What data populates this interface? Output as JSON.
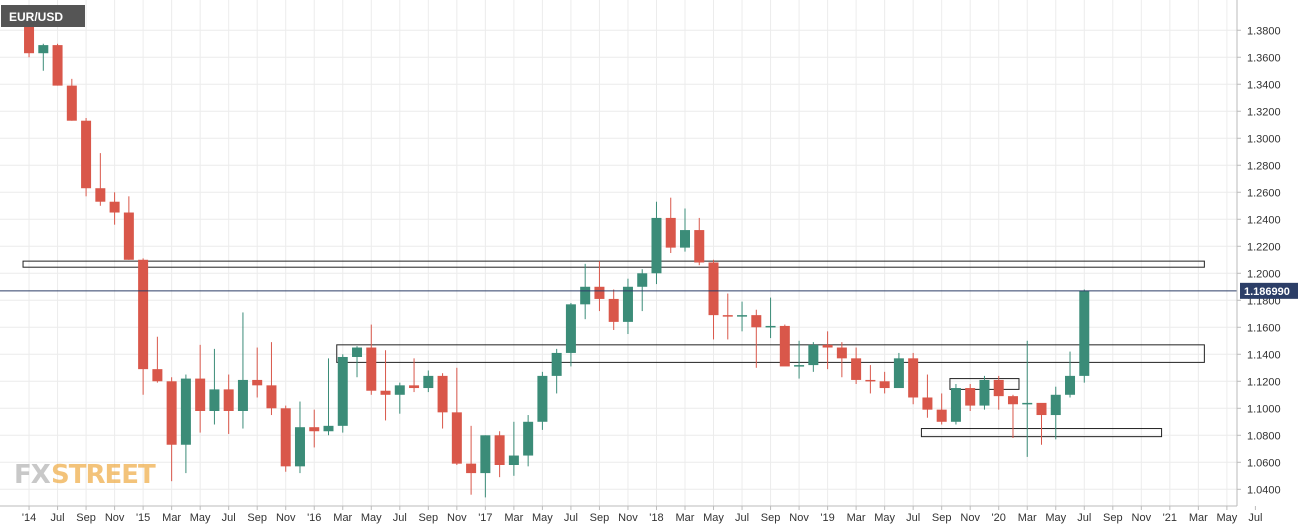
{
  "symbol": "EUR/USD",
  "watermark": {
    "part1": "FX",
    "part2": "STREET"
  },
  "current_price_label": "1.186990",
  "colors": {
    "up": "#3b8c78",
    "down": "#d9574a",
    "grid": "#ececec",
    "axis": "#bbbbbb",
    "price_line": "#2c3e67",
    "badge_bg": "#555555",
    "zone_stroke": "#222222"
  },
  "chart_data": {
    "type": "candlestick",
    "title": "EUR/USD",
    "timeframe": "weekly",
    "ylim": [
      1.03,
      1.395
    ],
    "y_ticks": [
      "1.3800",
      "1.3600",
      "1.3400",
      "1.3200",
      "1.3000",
      "1.2800",
      "1.2600",
      "1.2400",
      "1.2200",
      "1.2000",
      "1.1800",
      "1.1600",
      "1.1400",
      "1.1200",
      "1.1000",
      "1.0800",
      "1.0600",
      "1.0400"
    ],
    "x_ticks": [
      {
        "label": "'14",
        "date": "2014-05"
      },
      {
        "label": "Jul",
        "date": "2014-07"
      },
      {
        "label": "Sep",
        "date": "2014-09"
      },
      {
        "label": "Nov",
        "date": "2014-11"
      },
      {
        "label": "'15",
        "date": "2015-01"
      },
      {
        "label": "Mar",
        "date": "2015-03"
      },
      {
        "label": "May",
        "date": "2015-05"
      },
      {
        "label": "Jul",
        "date": "2015-07"
      },
      {
        "label": "Sep",
        "date": "2015-09"
      },
      {
        "label": "Nov",
        "date": "2015-11"
      },
      {
        "label": "'16",
        "date": "2016-01"
      },
      {
        "label": "Mar",
        "date": "2016-03"
      },
      {
        "label": "May",
        "date": "2016-05"
      },
      {
        "label": "Jul",
        "date": "2016-07"
      },
      {
        "label": "Sep",
        "date": "2016-09"
      },
      {
        "label": "Nov",
        "date": "2016-11"
      },
      {
        "label": "'17",
        "date": "2017-01"
      },
      {
        "label": "Mar",
        "date": "2017-03"
      },
      {
        "label": "May",
        "date": "2017-05"
      },
      {
        "label": "Jul",
        "date": "2017-07"
      },
      {
        "label": "Sep",
        "date": "2017-09"
      },
      {
        "label": "Nov",
        "date": "2017-11"
      },
      {
        "label": "'18",
        "date": "2018-01"
      },
      {
        "label": "Mar",
        "date": "2018-03"
      },
      {
        "label": "May",
        "date": "2018-05"
      },
      {
        "label": "Jul",
        "date": "2018-07"
      },
      {
        "label": "Sep",
        "date": "2018-09"
      },
      {
        "label": "Nov",
        "date": "2018-11"
      },
      {
        "label": "'19",
        "date": "2019-01"
      },
      {
        "label": "Mar",
        "date": "2019-03"
      },
      {
        "label": "May",
        "date": "2019-05"
      },
      {
        "label": "Jul",
        "date": "2019-07"
      },
      {
        "label": "Sep",
        "date": "2019-09"
      },
      {
        "label": "Nov",
        "date": "2019-11"
      },
      {
        "label": "'20",
        "date": "2020-01"
      },
      {
        "label": "Mar",
        "date": "2020-03"
      },
      {
        "label": "May",
        "date": "2020-05"
      },
      {
        "label": "Jul",
        "date": "2020-07"
      },
      {
        "label": "Sep",
        "date": "2020-09"
      },
      {
        "label": "Nov",
        "date": "2020-11"
      },
      {
        "label": "'21",
        "date": "2021-01"
      },
      {
        "label": "Mar",
        "date": "2021-03"
      },
      {
        "label": "May",
        "date": "2021-05"
      },
      {
        "label": "Jul",
        "date": "2021-07"
      }
    ],
    "candles": [
      {
        "date": "2014-05",
        "open": 1.387,
        "high": 1.393,
        "low": 1.36,
        "close": 1.363
      },
      {
        "date": "2014-06",
        "open": 1.363,
        "high": 1.37,
        "low": 1.35,
        "close": 1.369
      },
      {
        "date": "2014-07",
        "open": 1.369,
        "high": 1.37,
        "low": 1.339,
        "close": 1.339
      },
      {
        "date": "2014-08",
        "open": 1.339,
        "high": 1.344,
        "low": 1.313,
        "close": 1.313
      },
      {
        "date": "2014-09",
        "open": 1.313,
        "high": 1.315,
        "low": 1.257,
        "close": 1.263
      },
      {
        "date": "2014-10",
        "open": 1.263,
        "high": 1.289,
        "low": 1.25,
        "close": 1.253
      },
      {
        "date": "2014-11",
        "open": 1.253,
        "high": 1.26,
        "low": 1.236,
        "close": 1.245
      },
      {
        "date": "2014-12",
        "open": 1.245,
        "high": 1.257,
        "low": 1.21,
        "close": 1.21
      },
      {
        "date": "2015-01",
        "open": 1.21,
        "high": 1.211,
        "low": 1.11,
        "close": 1.129
      },
      {
        "date": "2015-02",
        "open": 1.129,
        "high": 1.153,
        "low": 1.119,
        "close": 1.12
      },
      {
        "date": "2015-03",
        "open": 1.12,
        "high": 1.123,
        "low": 1.046,
        "close": 1.073
      },
      {
        "date": "2015-04",
        "open": 1.073,
        "high": 1.125,
        "low": 1.052,
        "close": 1.122
      },
      {
        "date": "2015-05",
        "open": 1.122,
        "high": 1.147,
        "low": 1.082,
        "close": 1.098
      },
      {
        "date": "2015-06",
        "open": 1.098,
        "high": 1.144,
        "low": 1.088,
        "close": 1.114
      },
      {
        "date": "2015-07",
        "open": 1.114,
        "high": 1.125,
        "low": 1.081,
        "close": 1.098
      },
      {
        "date": "2015-08",
        "open": 1.098,
        "high": 1.171,
        "low": 1.085,
        "close": 1.121
      },
      {
        "date": "2015-09",
        "open": 1.121,
        "high": 1.145,
        "low": 1.108,
        "close": 1.117
      },
      {
        "date": "2015-10",
        "open": 1.117,
        "high": 1.149,
        "low": 1.095,
        "close": 1.1
      },
      {
        "date": "2015-11",
        "open": 1.1,
        "high": 1.102,
        "low": 1.053,
        "close": 1.057
      },
      {
        "date": "2015-12",
        "open": 1.057,
        "high": 1.105,
        "low": 1.052,
        "close": 1.086
      },
      {
        "date": "2016-01",
        "open": 1.086,
        "high": 1.099,
        "low": 1.071,
        "close": 1.083
      },
      {
        "date": "2016-02",
        "open": 1.083,
        "high": 1.137,
        "low": 1.08,
        "close": 1.087
      },
      {
        "date": "2016-03",
        "open": 1.087,
        "high": 1.14,
        "low": 1.082,
        "close": 1.138
      },
      {
        "date": "2016-04",
        "open": 1.138,
        "high": 1.146,
        "low": 1.123,
        "close": 1.145
      },
      {
        "date": "2016-05",
        "open": 1.145,
        "high": 1.162,
        "low": 1.11,
        "close": 1.113
      },
      {
        "date": "2016-06",
        "open": 1.113,
        "high": 1.143,
        "low": 1.091,
        "close": 1.11
      },
      {
        "date": "2016-07",
        "open": 1.11,
        "high": 1.119,
        "low": 1.096,
        "close": 1.117
      },
      {
        "date": "2016-08",
        "open": 1.117,
        "high": 1.137,
        "low": 1.112,
        "close": 1.115
      },
      {
        "date": "2016-09",
        "open": 1.115,
        "high": 1.128,
        "low": 1.112,
        "close": 1.124
      },
      {
        "date": "2016-10",
        "open": 1.124,
        "high": 1.126,
        "low": 1.085,
        "close": 1.097
      },
      {
        "date": "2016-11",
        "open": 1.097,
        "high": 1.13,
        "low": 1.058,
        "close": 1.059
      },
      {
        "date": "2016-12",
        "open": 1.059,
        "high": 1.087,
        "low": 1.036,
        "close": 1.052
      },
      {
        "date": "2017-01",
        "open": 1.052,
        "high": 1.08,
        "low": 1.034,
        "close": 1.08
      },
      {
        "date": "2017-02",
        "open": 1.08,
        "high": 1.083,
        "low": 1.049,
        "close": 1.058
      },
      {
        "date": "2017-03",
        "open": 1.058,
        "high": 1.09,
        "low": 1.05,
        "close": 1.065
      },
      {
        "date": "2017-04",
        "open": 1.065,
        "high": 1.095,
        "low": 1.057,
        "close": 1.09
      },
      {
        "date": "2017-05",
        "open": 1.09,
        "high": 1.127,
        "low": 1.084,
        "close": 1.124
      },
      {
        "date": "2017-06",
        "open": 1.124,
        "high": 1.144,
        "low": 1.111,
        "close": 1.141
      },
      {
        "date": "2017-07",
        "open": 1.141,
        "high": 1.178,
        "low": 1.131,
        "close": 1.177
      },
      {
        "date": "2017-08",
        "open": 1.177,
        "high": 1.207,
        "low": 1.166,
        "close": 1.19
      },
      {
        "date": "2017-09",
        "open": 1.19,
        "high": 1.209,
        "low": 1.172,
        "close": 1.181
      },
      {
        "date": "2017-10",
        "open": 1.181,
        "high": 1.188,
        "low": 1.158,
        "close": 1.164
      },
      {
        "date": "2017-11",
        "open": 1.164,
        "high": 1.196,
        "low": 1.155,
        "close": 1.19
      },
      {
        "date": "2017-12",
        "open": 1.19,
        "high": 1.203,
        "low": 1.172,
        "close": 1.2
      },
      {
        "date": "2018-01",
        "open": 1.2,
        "high": 1.253,
        "low": 1.192,
        "close": 1.241
      },
      {
        "date": "2018-02",
        "open": 1.241,
        "high": 1.256,
        "low": 1.215,
        "close": 1.219
      },
      {
        "date": "2018-03",
        "open": 1.219,
        "high": 1.248,
        "low": 1.216,
        "close": 1.232
      },
      {
        "date": "2018-04",
        "open": 1.232,
        "high": 1.241,
        "low": 1.206,
        "close": 1.208
      },
      {
        "date": "2018-05",
        "open": 1.208,
        "high": 1.21,
        "low": 1.151,
        "close": 1.169
      },
      {
        "date": "2018-06",
        "open": 1.169,
        "high": 1.185,
        "low": 1.151,
        "close": 1.168
      },
      {
        "date": "2018-07",
        "open": 1.168,
        "high": 1.179,
        "low": 1.157,
        "close": 1.169
      },
      {
        "date": "2018-08",
        "open": 1.169,
        "high": 1.173,
        "low": 1.13,
        "close": 1.16
      },
      {
        "date": "2018-09",
        "open": 1.16,
        "high": 1.182,
        "low": 1.152,
        "close": 1.161
      },
      {
        "date": "2018-10",
        "open": 1.161,
        "high": 1.162,
        "low": 1.133,
        "close": 1.131
      },
      {
        "date": "2018-11",
        "open": 1.131,
        "high": 1.15,
        "low": 1.122,
        "close": 1.132
      },
      {
        "date": "2018-12",
        "open": 1.132,
        "high": 1.149,
        "low": 1.127,
        "close": 1.147
      },
      {
        "date": "2019-01",
        "open": 1.147,
        "high": 1.157,
        "low": 1.129,
        "close": 1.145
      },
      {
        "date": "2019-02",
        "open": 1.145,
        "high": 1.149,
        "low": 1.123,
        "close": 1.137
      },
      {
        "date": "2019-03",
        "open": 1.137,
        "high": 1.145,
        "low": 1.118,
        "close": 1.121
      },
      {
        "date": "2019-04",
        "open": 1.121,
        "high": 1.132,
        "low": 1.111,
        "close": 1.12
      },
      {
        "date": "2019-05",
        "open": 1.12,
        "high": 1.127,
        "low": 1.111,
        "close": 1.115
      },
      {
        "date": "2019-06",
        "open": 1.115,
        "high": 1.141,
        "low": 1.118,
        "close": 1.137
      },
      {
        "date": "2019-07",
        "open": 1.137,
        "high": 1.141,
        "low": 1.103,
        "close": 1.108
      },
      {
        "date": "2019-08",
        "open": 1.108,
        "high": 1.125,
        "low": 1.093,
        "close": 1.099
      },
      {
        "date": "2019-09",
        "open": 1.099,
        "high": 1.111,
        "low": 1.088,
        "close": 1.09
      },
      {
        "date": "2019-10",
        "open": 1.09,
        "high": 1.118,
        "low": 1.088,
        "close": 1.115
      },
      {
        "date": "2019-11",
        "open": 1.115,
        "high": 1.118,
        "low": 1.098,
        "close": 1.102
      },
      {
        "date": "2019-12",
        "open": 1.102,
        "high": 1.124,
        "low": 1.099,
        "close": 1.121
      },
      {
        "date": "2020-01",
        "open": 1.121,
        "high": 1.124,
        "low": 1.099,
        "close": 1.109
      },
      {
        "date": "2020-02",
        "open": 1.109,
        "high": 1.11,
        "low": 1.078,
        "close": 1.103
      },
      {
        "date": "2020-03",
        "open": 1.103,
        "high": 1.15,
        "low": 1.064,
        "close": 1.104
      },
      {
        "date": "2020-04",
        "open": 1.104,
        "high": 1.102,
        "low": 1.073,
        "close": 1.095
      },
      {
        "date": "2020-05",
        "open": 1.095,
        "high": 1.116,
        "low": 1.077,
        "close": 1.11
      },
      {
        "date": "2020-06",
        "open": 1.11,
        "high": 1.142,
        "low": 1.108,
        "close": 1.124
      },
      {
        "date": "2020-07",
        "open": 1.124,
        "high": 1.188,
        "low": 1.119,
        "close": 1.187
      }
    ],
    "zones": [
      {
        "y_top": 1.209,
        "y_bottom": 1.2045,
        "x_start": "2014-05",
        "x_end": "2021-03"
      },
      {
        "y_top": 1.147,
        "y_bottom": 1.134,
        "x_start": "2016-03",
        "x_end": "2021-03"
      },
      {
        "y_top": 1.122,
        "y_bottom": 1.114,
        "x_start": "2019-10",
        "x_end": "2020-02"
      },
      {
        "y_top": 1.085,
        "y_bottom": 1.079,
        "x_start": "2019-08",
        "x_end": "2020-12"
      }
    ],
    "current_price": 1.18699
  }
}
